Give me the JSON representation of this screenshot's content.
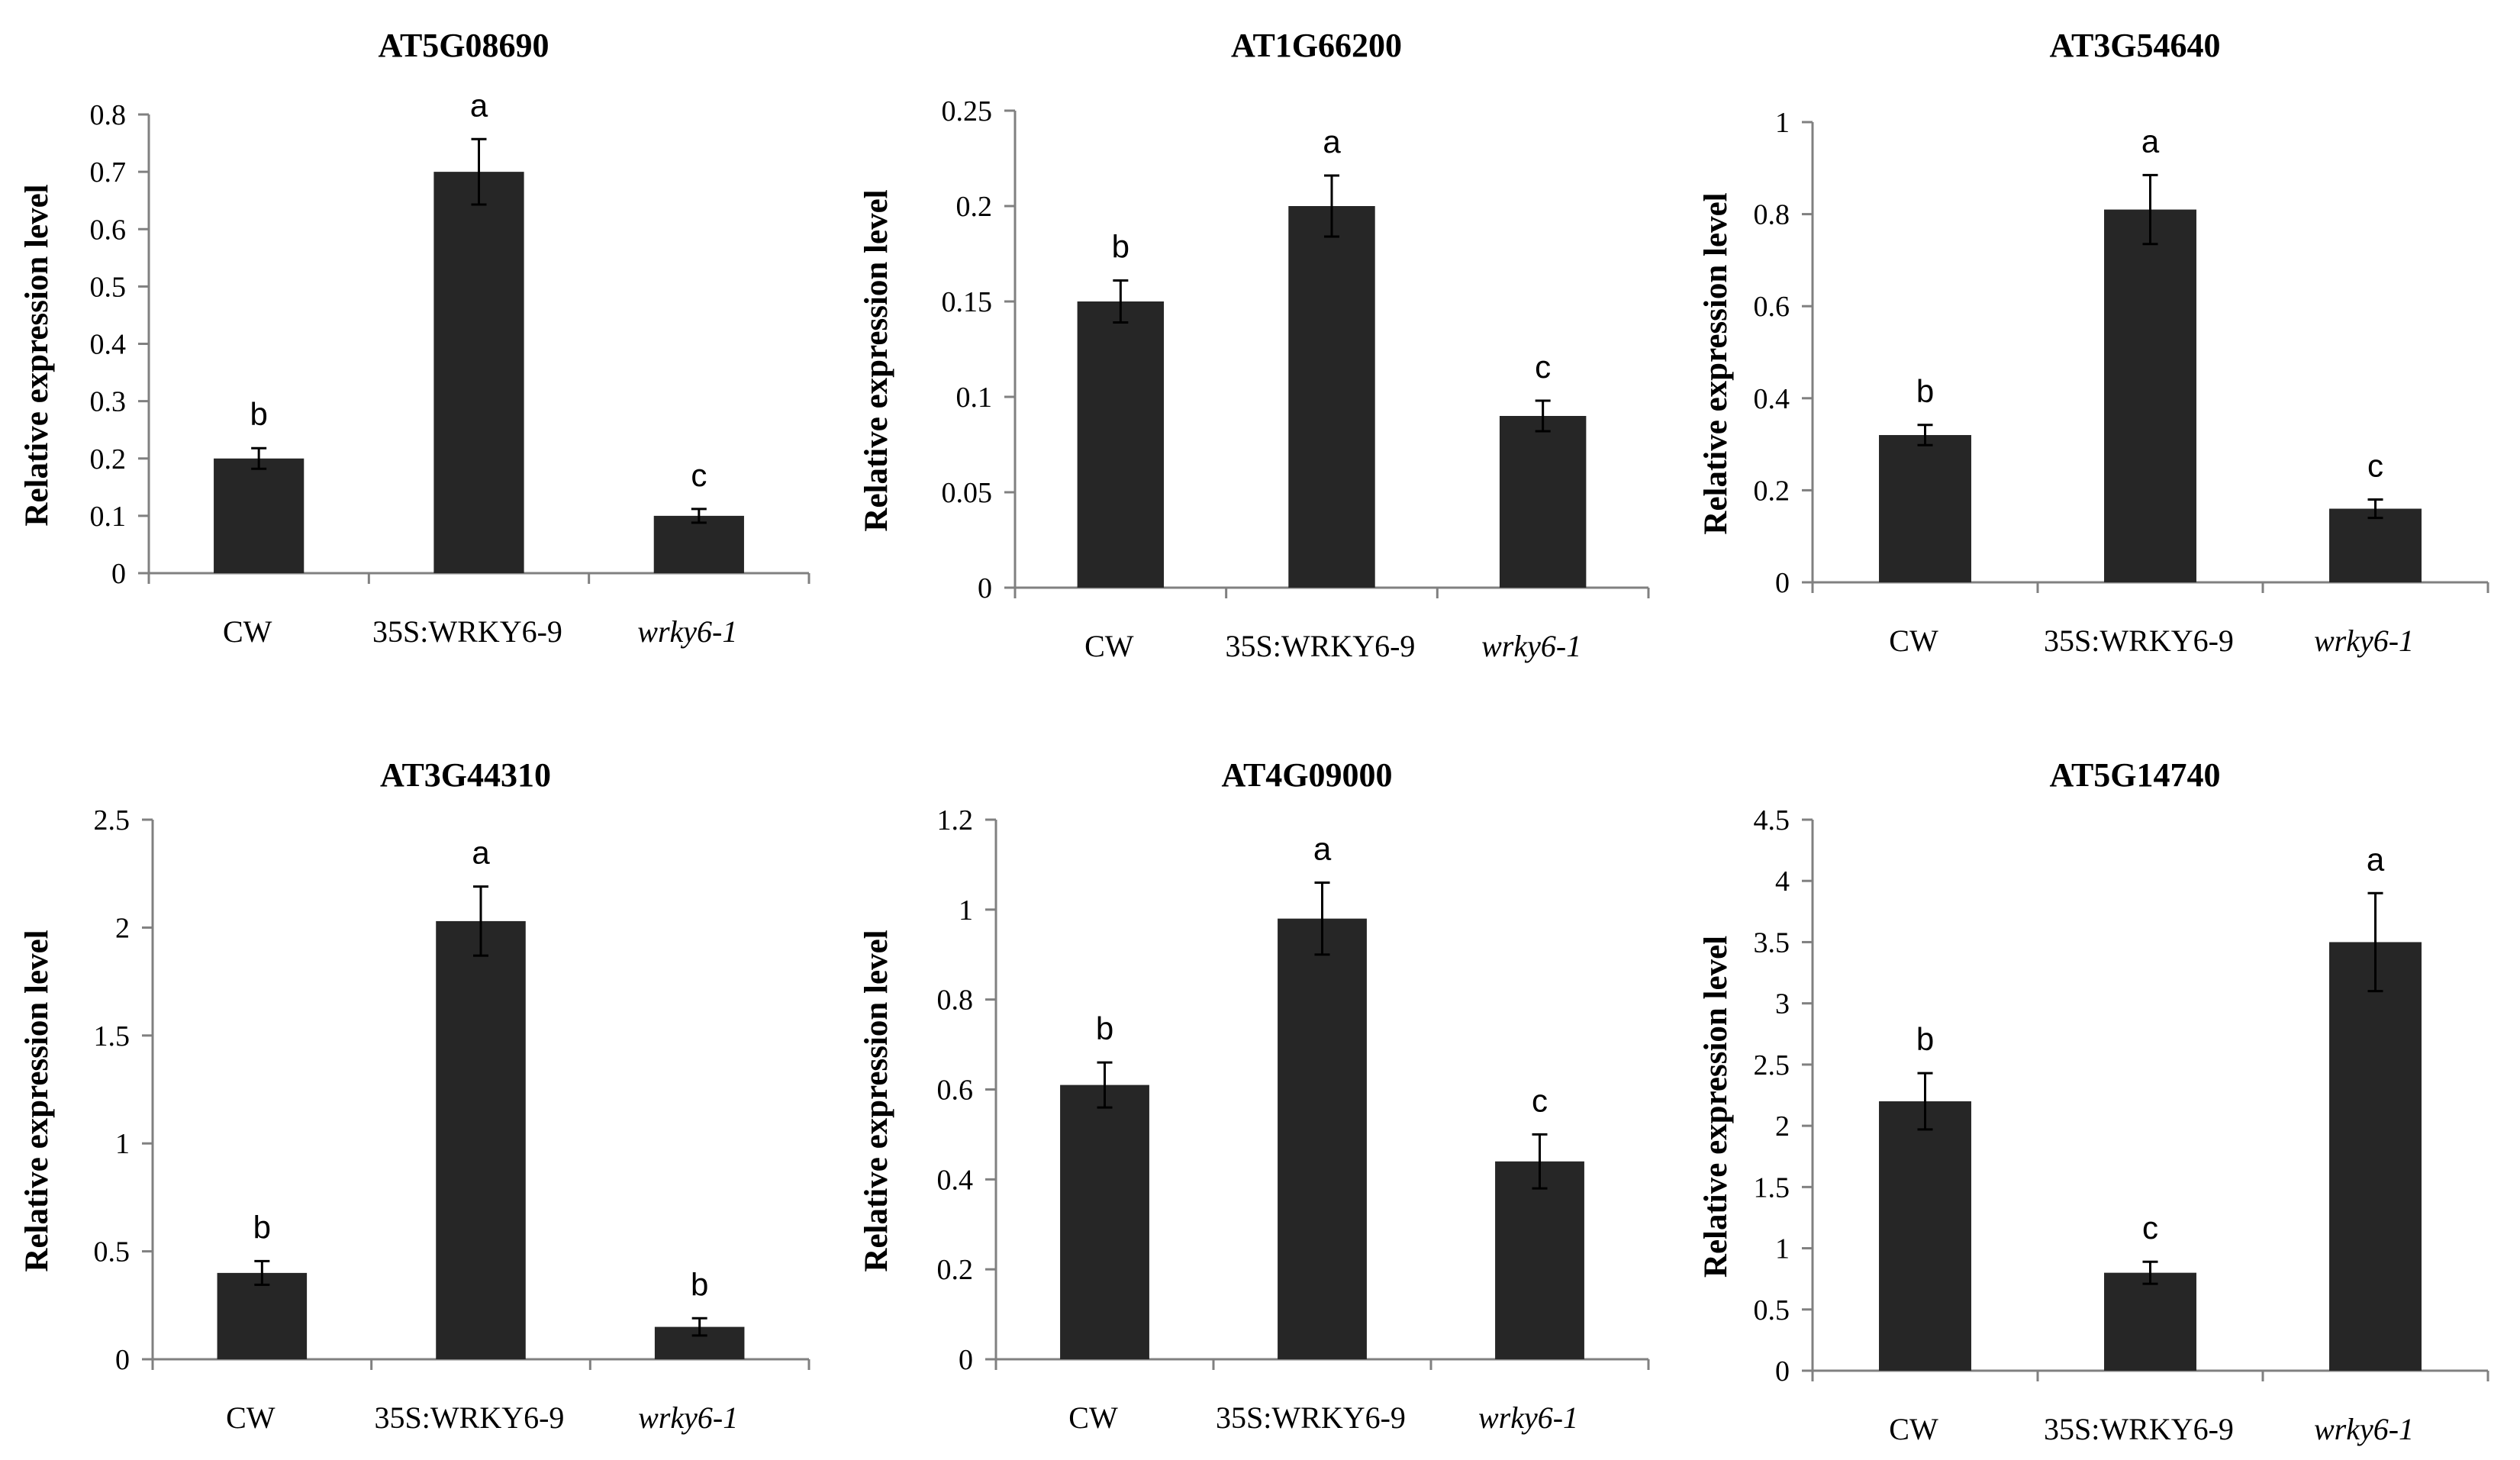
{
  "chart_data": [
    {
      "type": "bar",
      "title": "AT5G08690",
      "ylabel": "Relative expression level",
      "xlabel": "",
      "categories": [
        "CW",
        "35S:WRKY6-9",
        "wrky6-1"
      ],
      "italic_categories": [
        false,
        false,
        true
      ],
      "values": [
        0.2,
        0.7,
        0.1
      ],
      "errors": [
        0.018,
        0.057,
        0.012
      ],
      "letters": [
        "b",
        "a",
        "c"
      ],
      "ylim": [
        0,
        0.8
      ],
      "yticks": [
        "0",
        "0.1",
        "0.2",
        "0.3",
        "0.4",
        "0.5",
        "0.6",
        "0.7",
        "0.8"
      ],
      "legend": "none",
      "grid": false
    },
    {
      "type": "bar",
      "title": "AT1G66200",
      "ylabel": "Relative expression level",
      "xlabel": "",
      "categories": [
        "CW",
        "35S:WRKY6-9",
        "wrky6-1"
      ],
      "italic_categories": [
        false,
        false,
        true
      ],
      "values": [
        0.15,
        0.2,
        0.09
      ],
      "errors": [
        0.011,
        0.016,
        0.008
      ],
      "letters": [
        "b",
        "a",
        "c"
      ],
      "ylim": [
        0,
        0.25
      ],
      "yticks": [
        "0",
        "0.05",
        "0.1",
        "0.15",
        "0.2",
        "0.25"
      ],
      "legend": "none",
      "grid": false
    },
    {
      "type": "bar",
      "title": "AT3G54640",
      "ylabel": "Relative expression level",
      "xlabel": "",
      "categories": [
        "CW",
        "35S:WRKY6-9",
        "wrky6-1"
      ],
      "italic_categories": [
        false,
        false,
        true
      ],
      "values": [
        0.32,
        0.81,
        0.16
      ],
      "errors": [
        0.022,
        0.075,
        0.02
      ],
      "letters": [
        "b",
        "a",
        "c"
      ],
      "ylim": [
        0,
        1
      ],
      "yticks": [
        "0",
        "0.2",
        "0.4",
        "0.6",
        "0.8",
        "1"
      ],
      "legend": "none",
      "grid": false
    },
    {
      "type": "bar",
      "title": "AT3G44310",
      "ylabel": "Relative expression level",
      "xlabel": "",
      "categories": [
        "CW",
        "35S:WRKY6-9",
        "wrky6-1"
      ],
      "italic_categories": [
        false,
        false,
        true
      ],
      "values": [
        0.4,
        2.03,
        0.15
      ],
      "errors": [
        0.055,
        0.16,
        0.04
      ],
      "letters": [
        "b",
        "a",
        "b"
      ],
      "ylim": [
        0,
        2.5
      ],
      "yticks": [
        "0",
        "0.5",
        "1",
        "1.5",
        "2",
        "2.5"
      ],
      "legend": "none",
      "grid": false
    },
    {
      "type": "bar",
      "title": "AT4G09000",
      "ylabel": "Relative expression level",
      "xlabel": "",
      "categories": [
        "CW",
        "35S:WRKY6-9",
        "wrky6-1"
      ],
      "italic_categories": [
        false,
        false,
        true
      ],
      "values": [
        0.61,
        0.98,
        0.44
      ],
      "errors": [
        0.05,
        0.08,
        0.06
      ],
      "letters": [
        "b",
        "a",
        "c"
      ],
      "ylim": [
        0,
        1.2
      ],
      "yticks": [
        "0",
        "0.2",
        "0.4",
        "0.6",
        "0.8",
        "1",
        "1.2"
      ],
      "legend": "none",
      "grid": false
    },
    {
      "type": "bar",
      "title": "AT5G14740",
      "ylabel": "Relative expression level",
      "xlabel": "",
      "categories": [
        "CW",
        "35S:WRKY6-9",
        "wrky6-1"
      ],
      "italic_categories": [
        false,
        false,
        true
      ],
      "values": [
        2.2,
        0.8,
        3.5
      ],
      "errors": [
        0.23,
        0.09,
        0.4
      ],
      "letters": [
        "b",
        "c",
        "a"
      ],
      "ylim": [
        0,
        4.5
      ],
      "yticks": [
        "0",
        "0.5",
        "1",
        "1.5",
        "2",
        "2.5",
        "3",
        "3.5",
        "4",
        "4.5"
      ],
      "legend": "none",
      "grid": false
    }
  ]
}
